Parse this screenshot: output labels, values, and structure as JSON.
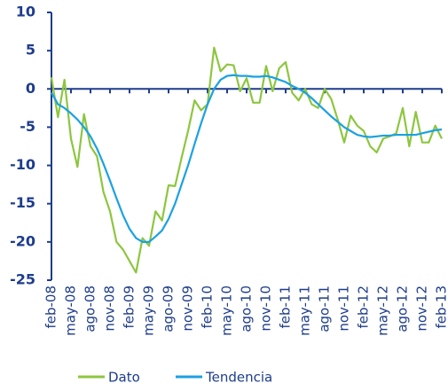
{
  "chart_data": {
    "type": "line",
    "categories": [
      "feb-08",
      null,
      null,
      "may-08",
      null,
      null,
      "ago-08",
      null,
      null,
      "nov-08",
      null,
      null,
      "feb-09",
      null,
      null,
      "may-09",
      null,
      null,
      "ago-09",
      null,
      null,
      "nov-09",
      null,
      null,
      "feb-10",
      null,
      null,
      "may-10",
      null,
      null,
      "ago-10",
      null,
      null,
      "nov-10",
      null,
      null,
      "feb-11",
      null,
      null,
      "may-11",
      null,
      null,
      "ago-11",
      null,
      null,
      "nov-11",
      null,
      null,
      "feb-12",
      null,
      null,
      "may-12",
      null,
      null,
      "ago-12",
      null,
      null,
      "nov-12",
      null,
      null,
      "feb-13"
    ],
    "series": [
      {
        "name": "Dato",
        "color": "#8dc63f",
        "values": [
          1.5,
          -3.7,
          1.2,
          -6.5,
          -10.2,
          -3.3,
          -7.5,
          -8.8,
          -13.5,
          -16,
          -20,
          -21,
          -22.5,
          -24,
          -19.5,
          -20.5,
          -16,
          -17.2,
          -12.6,
          -12.7,
          -9,
          -5.5,
          -1.5,
          -2.8,
          -2,
          5.4,
          2.3,
          3.2,
          3.1,
          -0.3,
          1.4,
          -1.8,
          -1.8,
          3,
          -0.3,
          2.7,
          3.5,
          -0.5,
          -1.5,
          0,
          -2,
          -2.5,
          0,
          -1.3,
          -4,
          -7,
          -3.5,
          -4.8,
          -5.5,
          -7.5,
          -8.3,
          -6.5,
          -6.2,
          -5.8,
          -2.5,
          -7.5,
          -3,
          -7,
          -7,
          -4.8,
          -6.5
        ]
      },
      {
        "name": "Tendencia",
        "color": "#1ba1e2",
        "values": [
          -0.5,
          -2,
          -2.5,
          -3.2,
          -4,
          -5,
          -6.2,
          -7.8,
          -9.8,
          -12,
          -14.3,
          -16.5,
          -18.3,
          -19.5,
          -20,
          -20,
          -19.3,
          -18.5,
          -17,
          -15,
          -12.5,
          -10,
          -7.2,
          -4.5,
          -2,
          0,
          1.2,
          1.7,
          1.8,
          1.7,
          1.7,
          1.6,
          1.6,
          1.7,
          1.5,
          1.2,
          0.9,
          0.4,
          0,
          -0.5,
          -1.2,
          -2,
          -2.8,
          -3.6,
          -4.3,
          -5,
          -5.5,
          -6,
          -6.2,
          -6.3,
          -6.2,
          -6.1,
          -6.1,
          -6,
          -6,
          -6,
          -6,
          -5.8,
          -5.6,
          -5.4,
          -5.3
        ]
      }
    ],
    "ylim": [
      -25,
      10
    ],
    "yticks": [
      -25,
      -20,
      -15,
      -10,
      -5,
      0,
      5,
      10
    ],
    "axis_color": "#1d3c8c"
  }
}
